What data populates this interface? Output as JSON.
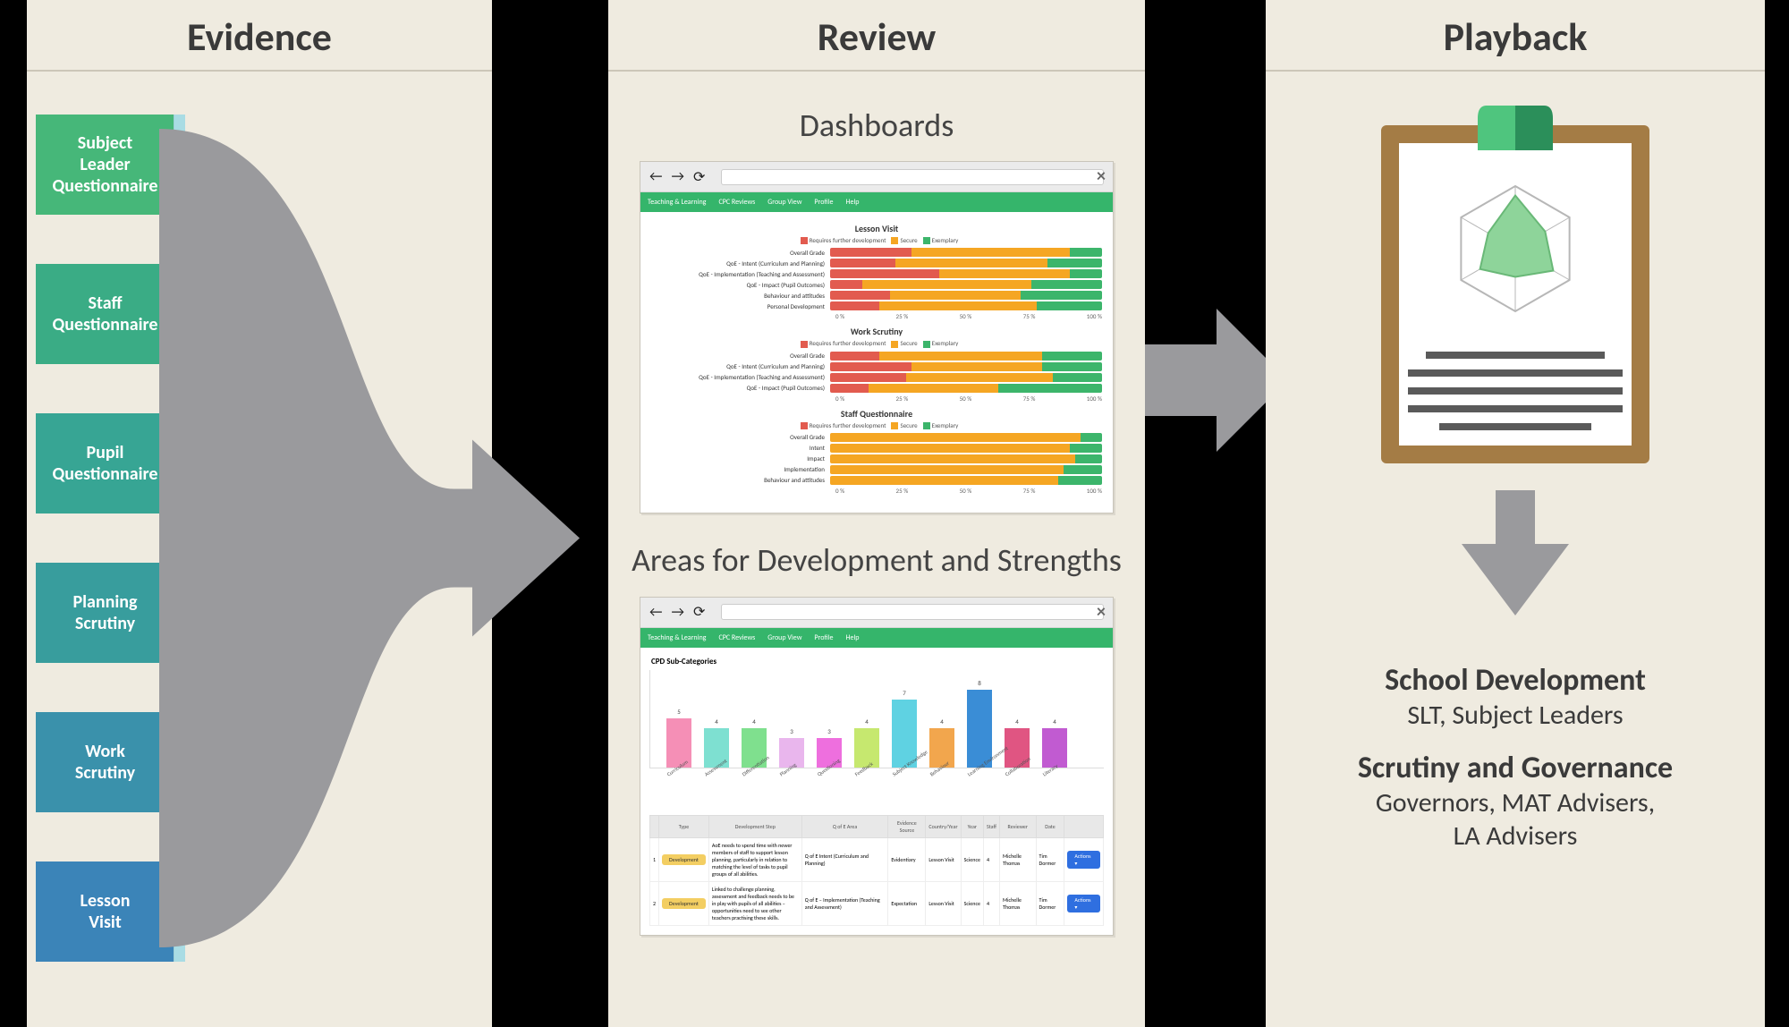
{
  "columns": {
    "evidence": {
      "title": "Evidence"
    },
    "review": {
      "title": "Review",
      "sub1": "Dashboards",
      "sub2": "Areas for Development and Strengths"
    },
    "playback": {
      "title": "Playback"
    }
  },
  "evidence": {
    "tiles": [
      {
        "label": "Subject Leader Questionnaire",
        "color": "#46b779"
      },
      {
        "label": "Staff Questionnaire",
        "color": "#3aac85"
      },
      {
        "label": "Pupil Questionnaire",
        "color": "#37a594"
      },
      {
        "label": "Planning Scrutiny",
        "color": "#389d9d"
      },
      {
        "label": "Work Scrutiny",
        "color": "#3a91ab"
      },
      {
        "label": "Lesson Visit",
        "color": "#3b84b8"
      }
    ],
    "tile_edge_highlight": "#a9dce4",
    "funnel_fill": "#9a9a9d"
  },
  "arrows": {
    "fill": "#9a9a9d"
  },
  "dashboard_window": {
    "tabs": [
      "Teaching & Learning",
      "CPC Reviews",
      "Group View",
      "Profile",
      "Help"
    ],
    "legend": {
      "rfd": "Requires further development",
      "secure": "Secure",
      "exemplary": "Exemplary",
      "rfd_color": "#e25b4f",
      "secure_color": "#f5a623",
      "exemplary_color": "#3cb56b"
    },
    "axis_ticks": [
      "0 %",
      "25 %",
      "50 %",
      "75 %",
      "100 %"
    ],
    "sections": [
      {
        "title": "Lesson Visit",
        "rows": [
          {
            "label": "Overall Grade",
            "seg": [
              30,
              58,
              12
            ]
          },
          {
            "label": "QoE - Intent (Curriculum and Planning)",
            "seg": [
              24,
              56,
              20
            ]
          },
          {
            "label": "QoE - Implementation (Teaching and Assessment)",
            "seg": [
              40,
              48,
              12
            ]
          },
          {
            "label": "QoE - Impact (Pupil Outcomes)",
            "seg": [
              12,
              62,
              26
            ]
          },
          {
            "label": "Behaviour and attitudes",
            "seg": [
              22,
              48,
              30
            ]
          },
          {
            "label": "Personal Development",
            "seg": [
              18,
              58,
              24
            ]
          }
        ]
      },
      {
        "title": "Work Scrutiny",
        "rows": [
          {
            "label": "Overall Grade",
            "seg": [
              18,
              60,
              22
            ]
          },
          {
            "label": "QoE - Intent (Curriculum and Planning)",
            "seg": [
              30,
              48,
              22
            ]
          },
          {
            "label": "QoE - Implementation (Teaching and Assessment)",
            "seg": [
              28,
              54,
              18
            ]
          },
          {
            "label": "QoE - Impact (Pupil Outcomes)",
            "seg": [
              14,
              48,
              38
            ]
          }
        ]
      },
      {
        "title": "Staff Questionnaire",
        "rows": [
          {
            "label": "Overall Grade",
            "seg": [
              0,
              92,
              8
            ]
          },
          {
            "label": "Intent",
            "seg": [
              0,
              88,
              12
            ]
          },
          {
            "label": "Impact",
            "seg": [
              0,
              90,
              10
            ]
          },
          {
            "label": "Implementation",
            "seg": [
              0,
              86,
              14
            ]
          },
          {
            "label": "Behaviour and attitudes",
            "seg": [
              0,
              84,
              16
            ]
          }
        ]
      }
    ]
  },
  "barchart_window": {
    "tabs": [
      "Teaching & Learning",
      "CPC Reviews",
      "Group View",
      "Profile",
      "Help"
    ],
    "title": "CPD Sub-Categories",
    "ymax": 10,
    "bars": [
      {
        "x": "Curriculum",
        "y": 5,
        "color": "#f58fb6"
      },
      {
        "x": "Assessment",
        "y": 4,
        "color": "#7ee0d1"
      },
      {
        "x": "Differentiation",
        "y": 4,
        "color": "#7fe08e"
      },
      {
        "x": "Planning",
        "y": 3,
        "color": "#e9b6ed"
      },
      {
        "x": "Questioning",
        "y": 3,
        "color": "#ee6fde"
      },
      {
        "x": "Feedback",
        "y": 4,
        "color": "#c6e86f"
      },
      {
        "x": "Subject Knowledge",
        "y": 7,
        "color": "#5fd2e2"
      },
      {
        "x": "Behaviour",
        "y": 4,
        "color": "#f2a64d"
      },
      {
        "x": "Learning Environment",
        "y": 8,
        "color": "#3a8dd6"
      },
      {
        "x": "Collaboration",
        "y": 4,
        "color": "#e05582"
      },
      {
        "x": "Literacy",
        "y": 4,
        "color": "#c15bd1"
      }
    ],
    "table": {
      "columns": [
        "",
        "Type",
        "Development Step",
        "Q of E Area",
        "Evidence Source",
        "Country/Year",
        "Year",
        "Staff",
        "Reviewer",
        "Date",
        ""
      ],
      "rows": [
        {
          "type": "Development",
          "type_color": "#f3ce62",
          "step": "AoE needs to spend time with newer members of staff to support lesson planning, particularly in relation to matching the level of tasks to pupil groups of all abilities.",
          "area": "Q of E Intent (Curriculum and Planning)",
          "source": "Evidentiary",
          "visit": "Lesson Visit",
          "country": "Science",
          "year": "4",
          "staff": "Michelle Thomas",
          "reviewer": "Tim Dormer",
          "action": "Actions",
          "action_color": "#2f6fe0"
        },
        {
          "type": "Development",
          "type_color": "#f3ce62",
          "step": "Linked to challenge planning, assessment and feedback needs to be in play with pupils of all abilities – opportunities need to see other teachers practising these skills.",
          "area": "Q of E – Implementation (Teaching and Assessment)",
          "source": "Expectation",
          "visit": "Lesson Visit",
          "country": "Science",
          "year": "4",
          "staff": "Michelle Thomas",
          "reviewer": "Tim Dormer",
          "action": "Actions",
          "action_color": "#2f6fe0"
        }
      ]
    }
  },
  "playback": {
    "clipboard": {
      "board_color": "#a47c45",
      "clip_dark": "#2b8f5a",
      "clip_light": "#4fc57e",
      "paper_color": "#ffffff",
      "radar_outline": "#b7b7b7",
      "radar_fill": "#8ed49a",
      "radar_fill_dark": "#69b877",
      "line_color": "#5a5a5a"
    },
    "arrow_down_fill": "#9a9a9d",
    "text": {
      "h1": "School Development",
      "s1": "SLT, Subject Leaders",
      "h2": "Scrutiny and Governance",
      "s2a": "Governors, MAT Advisers,",
      "s2b": "LA Advisers"
    }
  }
}
